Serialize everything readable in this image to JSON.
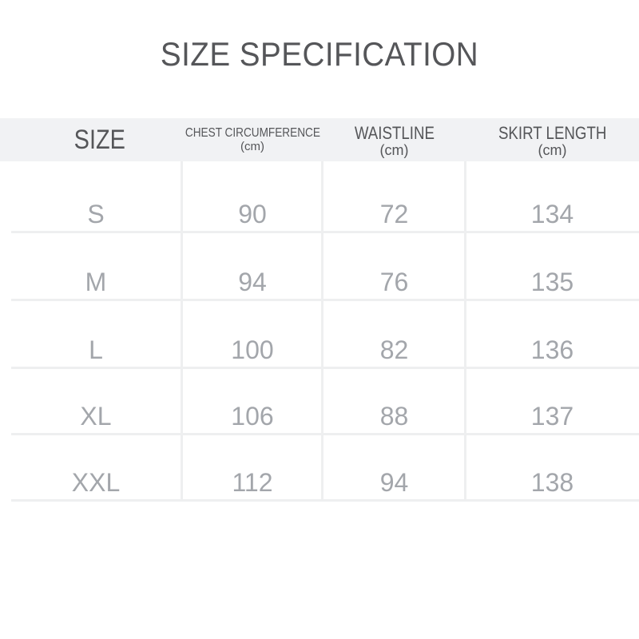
{
  "title": "SIZE SPECIFICATION",
  "columns": [
    {
      "label": "SIZE",
      "unit": ""
    },
    {
      "label": "CHEST CIRCUMFERENCE",
      "unit": "(cm)"
    },
    {
      "label": "WAISTLINE",
      "unit": "(cm)"
    },
    {
      "label": "SKIRT LENGTH",
      "unit": "(cm)"
    }
  ],
  "rows": [
    [
      "S",
      "90",
      "72",
      "134"
    ],
    [
      "M",
      "94",
      "76",
      "135"
    ],
    [
      "L",
      "100",
      "82",
      "136"
    ],
    [
      "XL",
      "106",
      "88",
      "137"
    ],
    [
      "XXL",
      "112",
      "94",
      "138"
    ]
  ],
  "colors": {
    "title": "#555659",
    "header_bg": "#f1f2f4",
    "cell_text": "#a3a6ab",
    "grid": "#eeeff0"
  }
}
